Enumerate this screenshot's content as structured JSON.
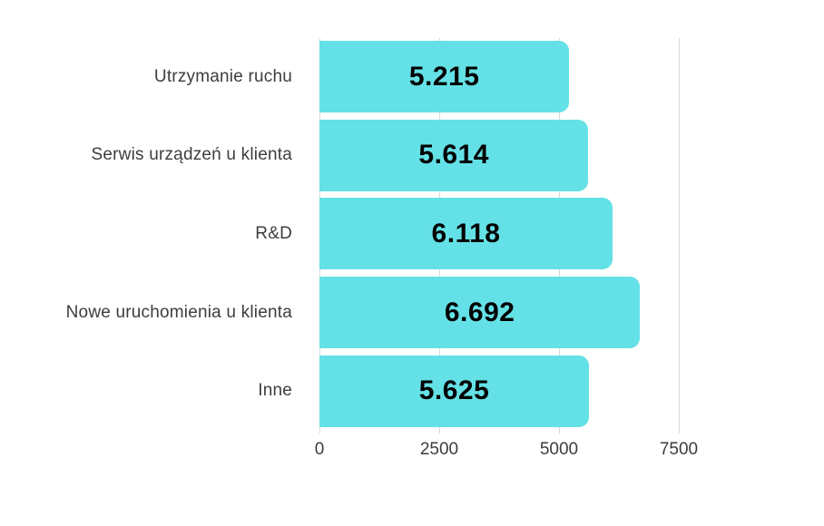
{
  "chart_data": {
    "type": "bar",
    "orientation": "horizontal",
    "title": "",
    "categories": [
      "Utrzymanie ruchu",
      "Serwis urządzeń u klienta",
      "R&D",
      "Nowe uruchomienia u klienta",
      "Inne"
    ],
    "values": [
      5215,
      5614,
      6118,
      6692,
      5625
    ],
    "value_labels": [
      "5.215",
      "5.614",
      "6.118",
      "6.692",
      "5.625"
    ],
    "x_ticks": [
      0,
      2500,
      5000,
      7500
    ],
    "x_tick_labels": [
      "0",
      "2500",
      "5000",
      "7500"
    ],
    "xlim": [
      0,
      7500
    ],
    "grid": "vertical-lines-on",
    "legend": "none",
    "colors": {
      "bar_fill": "#64e1e6",
      "value_text": "#000000",
      "label_text": "#3d3d3d",
      "gridline": "#d9d9d9",
      "background": "#ffffff"
    }
  }
}
